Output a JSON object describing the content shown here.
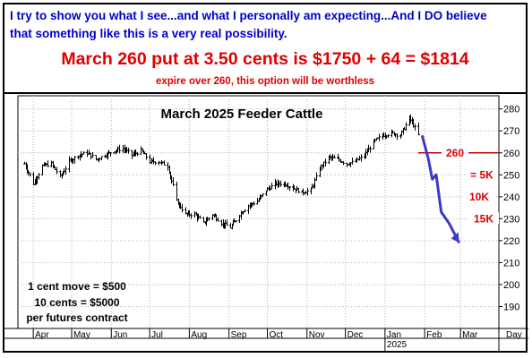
{
  "header": {
    "line1": "I try to show you what I see...and what I personally am expecting...And I DO believe that something like this is a very real possibility.",
    "line2": "March 260 put at 3.50 cents is $1750 + 64 = $1814",
    "line3": "expire over 260, this option will be worthless"
  },
  "chart_data": {
    "type": "bar",
    "title": "March 2025 Feeder Cattle",
    "xlabel": "",
    "ylabel": "",
    "x_ticks": [
      "Apr",
      "May",
      "Jun",
      "Jul",
      "Aug",
      "Sep",
      "Oct",
      "Nov",
      "Dec",
      "Jan",
      "Feb",
      "Mar",
      "Day"
    ],
    "x_year_label": "2025",
    "ylim": [
      180,
      286
    ],
    "y_ticks": [
      190,
      200,
      210,
      220,
      230,
      240,
      250,
      260,
      270,
      280
    ],
    "grid": true,
    "series": [
      {
        "type": "ohlc-bars",
        "x": [
          "2024-03-25",
          "2024-04-01",
          "2024-04-08",
          "2024-04-15",
          "2024-04-22",
          "2024-04-29",
          "2024-05-06",
          "2024-05-13",
          "2024-05-20",
          "2024-05-27",
          "2024-06-03",
          "2024-06-10",
          "2024-06-17",
          "2024-06-24",
          "2024-07-01",
          "2024-07-08",
          "2024-07-15",
          "2024-07-22",
          "2024-07-29",
          "2024-08-05",
          "2024-08-12",
          "2024-08-19",
          "2024-08-26",
          "2024-09-02",
          "2024-09-09",
          "2024-09-16",
          "2024-09-23",
          "2024-09-30",
          "2024-10-07",
          "2024-10-14",
          "2024-10-21",
          "2024-10-28",
          "2024-11-04",
          "2024-11-11",
          "2024-11-18",
          "2024-11-25",
          "2024-12-02",
          "2024-12-09",
          "2024-12-16",
          "2024-12-23",
          "2024-12-30",
          "2025-01-06",
          "2025-01-13",
          "2025-01-20",
          "2025-01-27"
        ],
        "values": [
          255,
          246,
          254,
          255,
          249,
          256,
          259,
          260,
          257,
          259,
          261,
          262,
          259,
          261,
          256,
          256,
          254,
          238,
          232,
          232,
          228,
          232,
          228,
          226,
          232,
          236,
          238,
          243,
          246,
          246,
          244,
          242,
          243,
          253,
          258,
          257,
          255,
          256,
          259,
          265,
          268,
          269,
          268,
          276,
          268
        ]
      },
      {
        "type": "projection",
        "name": "",
        "x": [
          "2025-01-30",
          "2025-02-04",
          "2025-02-07",
          "2025-02-10",
          "2025-02-14",
          "2025-02-20",
          "2025-02-28"
        ],
        "values": [
          268,
          257,
          248,
          250,
          233,
          228,
          219
        ]
      }
    ],
    "annotations": [
      {
        "text": "260",
        "y": 260,
        "color": "#e00000"
      },
      {
        "text": "= 5K",
        "y": 250,
        "color": "#e00000"
      },
      {
        "text": "10K",
        "y": 240,
        "color": "#e00000"
      },
      {
        "text": "15K",
        "y": 230,
        "color": "#e00000"
      },
      {
        "text": "1 cent move = $500",
        "color": "#000000"
      },
      {
        "text": "10 cents = $5000",
        "color": "#000000"
      },
      {
        "text": "per futures contract",
        "color": "#000000"
      }
    ],
    "colors": {
      "bars": "#000000",
      "projection": "#3a3ac8",
      "strike_line": "#cc0000",
      "grid": "#b4b4b4",
      "labels_red": "#e00000"
    }
  }
}
